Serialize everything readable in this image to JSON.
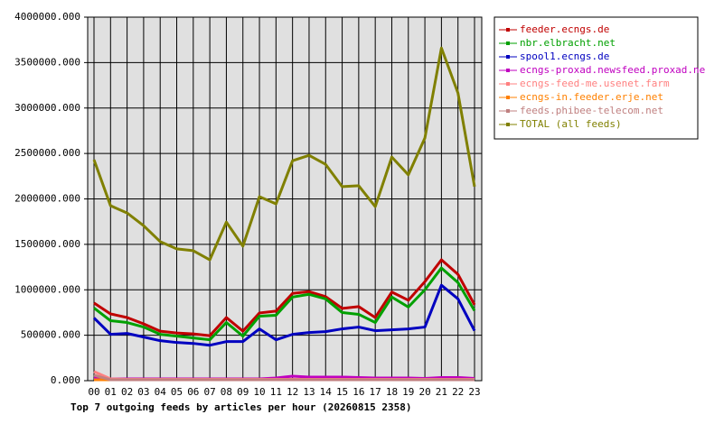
{
  "chart_data": {
    "type": "line",
    "title": "Top 7 outgoing feeds by articles per hour (20260815 2358)",
    "categories": [
      "00",
      "01",
      "02",
      "03",
      "04",
      "05",
      "06",
      "07",
      "08",
      "09",
      "10",
      "11",
      "12",
      "13",
      "14",
      "15",
      "16",
      "17",
      "18",
      "19",
      "20",
      "21",
      "22",
      "23"
    ],
    "ylim": [
      0,
      4000000
    ],
    "yticks": [
      {
        "value": 0,
        "label": "0.000"
      },
      {
        "value": 500000,
        "label": "500000.000"
      },
      {
        "value": 1000000,
        "label": "1000000.000"
      },
      {
        "value": 1500000,
        "label": "1500000.000"
      },
      {
        "value": 2000000,
        "label": "2000000.000"
      },
      {
        "value": 2500000,
        "label": "2500000.000"
      },
      {
        "value": 3000000,
        "label": "3000000.000"
      },
      {
        "value": 3500000,
        "label": "3500000.000"
      },
      {
        "value": 4000000,
        "label": "4000000.000"
      }
    ],
    "grid": true,
    "legend": "right",
    "series": [
      {
        "name": "feeder.ecngs.de",
        "color": "#c00000",
        "values": [
          855000,
          735000,
          695000,
          625000,
          545000,
          525000,
          515000,
          495000,
          695000,
          545000,
          745000,
          765000,
          960000,
          980000,
          925000,
          795000,
          815000,
          695000,
          975000,
          885000,
          1090000,
          1330000,
          1170000,
          835000
        ]
      },
      {
        "name": "nbr.elbracht.net",
        "color": "#00a000",
        "values": [
          800000,
          660000,
          640000,
          590000,
          510000,
          490000,
          470000,
          450000,
          640000,
          490000,
          710000,
          720000,
          920000,
          950000,
          900000,
          750000,
          730000,
          640000,
          920000,
          810000,
          1000000,
          1240000,
          1080000,
          770000
        ]
      },
      {
        "name": "spool1.ecngs.de",
        "color": "#0000c0",
        "values": [
          690000,
          510000,
          520000,
          480000,
          440000,
          420000,
          410000,
          390000,
          430000,
          430000,
          570000,
          450000,
          510000,
          530000,
          540000,
          570000,
          590000,
          550000,
          560000,
          570000,
          590000,
          1050000,
          900000,
          550000
        ]
      },
      {
        "name": "ecngs-proxad.newsfeed.proxad.net",
        "color": "#c000c0",
        "values": [
          30000,
          20000,
          20000,
          20000,
          20000,
          20000,
          20000,
          20000,
          20000,
          20000,
          20000,
          30000,
          50000,
          40000,
          40000,
          40000,
          35000,
          30000,
          30000,
          30000,
          25000,
          35000,
          35000,
          25000
        ]
      },
      {
        "name": "ecngs-feed-me.usenet.farm",
        "color": "#ff8080",
        "values": [
          100000,
          20000,
          15000,
          15000,
          15000,
          15000,
          15000,
          15000,
          15000,
          15000,
          15000,
          15000,
          15000,
          15000,
          15000,
          15000,
          15000,
          15000,
          15000,
          15000,
          15000,
          15000,
          15000,
          15000
        ]
      },
      {
        "name": "ecngs-in.feeder.erje.net",
        "color": "#ff8000",
        "values": [
          10000,
          10000,
          10000,
          10000,
          10000,
          10000,
          10000,
          10000,
          10000,
          10000,
          10000,
          10000,
          10000,
          10000,
          10000,
          10000,
          10000,
          10000,
          10000,
          10000,
          10000,
          10000,
          10000,
          10000
        ]
      },
      {
        "name": "feeds.phibee-telecom.net",
        "color": "#c08080",
        "values": [
          60000,
          10000,
          10000,
          10000,
          10000,
          10000,
          10000,
          10000,
          10000,
          10000,
          10000,
          10000,
          10000,
          10000,
          10000,
          10000,
          10000,
          10000,
          10000,
          10000,
          10000,
          10000,
          10000,
          10000
        ]
      },
      {
        "name": "TOTAL (all feeds)",
        "color": "#808000",
        "values": [
          2430000,
          1925000,
          1845000,
          1705000,
          1530000,
          1450000,
          1430000,
          1330000,
          1745000,
          1480000,
          2025000,
          1945000,
          2420000,
          2480000,
          2380000,
          2135000,
          2145000,
          1915000,
          2460000,
          2265000,
          2670000,
          3660000,
          3165000,
          2135000
        ]
      }
    ]
  }
}
